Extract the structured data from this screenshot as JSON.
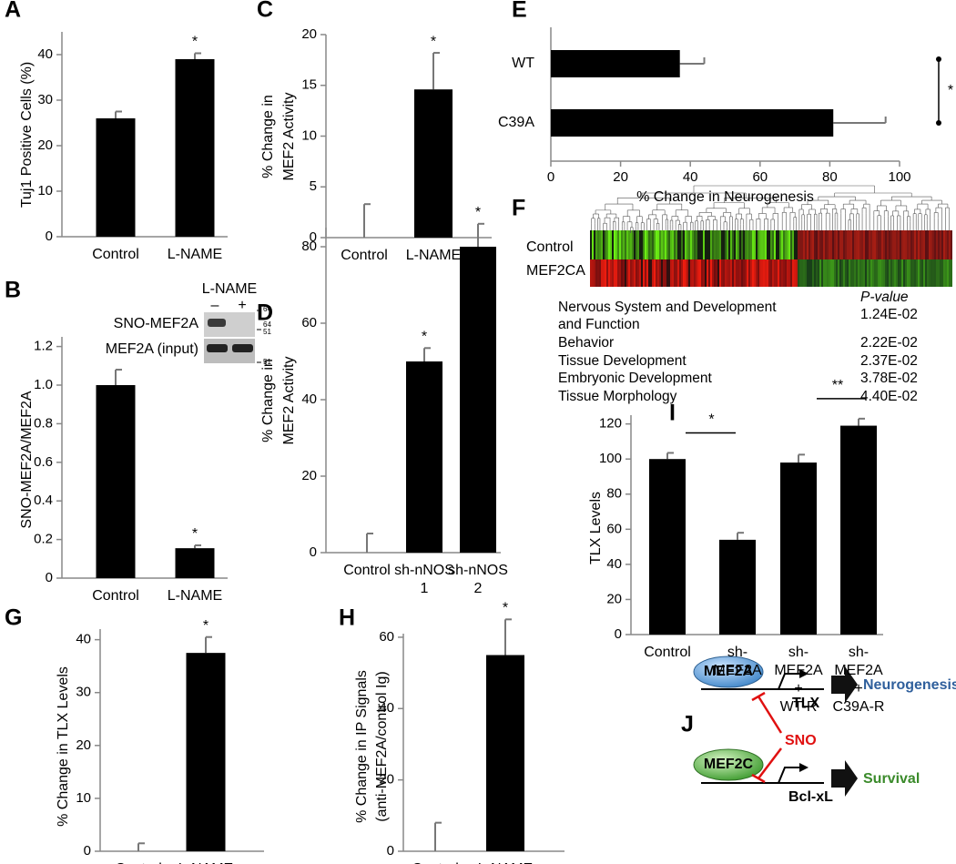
{
  "chart_data": [
    {
      "type": "bar",
      "panel": "A",
      "ylabel": [
        "Tuj1 Positive Cells (%)"
      ],
      "categories": [
        [
          "Control"
        ],
        [
          "L-NAME"
        ]
      ],
      "values": [
        26,
        39
      ],
      "errors": [
        1.5,
        1.3
      ],
      "value_annotations": [
        null,
        "*"
      ],
      "color": "#000000",
      "ylim": [
        0,
        45
      ],
      "yticks": [
        0,
        10,
        20,
        30,
        40
      ]
    },
    {
      "type": "bar",
      "panel": "B",
      "ylabel": [
        "SNO-MEF2A/MEF2A"
      ],
      "categories": [
        [
          "Control"
        ],
        [
          "L-NAME"
        ]
      ],
      "values": [
        1.0,
        0.155
      ],
      "errors": [
        0.08,
        0.015
      ],
      "value_annotations": [
        null,
        "*"
      ],
      "color": "#000000",
      "ylim": [
        0,
        1.25
      ],
      "yticks": [
        0,
        0.2,
        0.4,
        0.6,
        0.8,
        {
          "value": 1,
          "label": "1.0"
        },
        1.2
      ]
    },
    {
      "type": "bar",
      "panel": "C",
      "ylabel": [
        "% Change in",
        "MEF2 Activity"
      ],
      "categories": [
        [
          "Control"
        ],
        [
          "L-NAME"
        ]
      ],
      "values": [
        0,
        14.6
      ],
      "errors": [
        3.3,
        3.6
      ],
      "value_annotations": [
        null,
        "*"
      ],
      "color": "#000000",
      "ylim": [
        0,
        20
      ],
      "yticks": [
        0,
        5,
        10,
        15,
        20
      ]
    },
    {
      "type": "bar",
      "panel": "D",
      "ylabel": [
        "% Change in",
        "MEF2 Activity"
      ],
      "categories": [
        [
          "Control"
        ],
        [
          "sh-nNOS",
          "1"
        ],
        [
          "sh-nNOS",
          "2"
        ]
      ],
      "values": [
        0,
        50,
        80
      ],
      "errors": [
        5,
        3.5,
        6
      ],
      "value_annotations": [
        null,
        "*",
        "*"
      ],
      "color": "#000000",
      "ylim": [
        0,
        85
      ],
      "yticks": [
        0,
        20,
        40,
        60,
        80
      ]
    },
    {
      "type": "hbar",
      "panel": "E",
      "xlabel": "% Change in Neurogenesis",
      "categories": [
        "WT",
        "C39A"
      ],
      "values": [
        37,
        81
      ],
      "errors": [
        7,
        15
      ],
      "color": "#000000",
      "xlim": [
        0,
        100
      ],
      "xticks": [
        0,
        20,
        40,
        60,
        80,
        100
      ],
      "brackets": [
        {
          "from": 0,
          "to": 1,
          "label": "*"
        }
      ]
    },
    {
      "type": "bar",
      "panel": "G",
      "ylabel": [
        "% Change in TLX Levels"
      ],
      "categories": [
        [
          "Control"
        ],
        [
          "L-NAME"
        ]
      ],
      "values": [
        0,
        37.5
      ],
      "errors": [
        1.5,
        3
      ],
      "value_annotations": [
        null,
        "*"
      ],
      "color": "#000000",
      "ylim": [
        0,
        42
      ],
      "yticks": [
        0,
        10,
        20,
        30,
        40
      ]
    },
    {
      "type": "bar",
      "panel": "H",
      "ylabel": [
        "% Change in IP Signals",
        "(anti-MEF2A/control Ig)"
      ],
      "categories": [
        [
          "Control"
        ],
        [
          "L-NAME"
        ]
      ],
      "values": [
        0,
        55
      ],
      "errors": [
        8,
        10
      ],
      "value_annotations": [
        null,
        "*"
      ],
      "color": "#000000",
      "ylim": [
        0,
        61
      ],
      "yticks": [
        0,
        20,
        40,
        60
      ]
    },
    {
      "type": "bar",
      "panel": "I",
      "ylabel": [
        "TLX Levels"
      ],
      "categories": [
        [
          "Control"
        ],
        [
          "sh-",
          "MEF2A"
        ],
        [
          "sh-",
          "MEF2A",
          "+",
          "WT-R"
        ],
        [
          "sh-",
          "MEF2A",
          "+",
          "C39A-R"
        ]
      ],
      "values": [
        100,
        54,
        98,
        119
      ],
      "errors": [
        3.5,
        4,
        4.5,
        4
      ],
      "color": "#000000",
      "ylim": [
        0,
        125
      ],
      "yticks": [
        0,
        20,
        40,
        60,
        80,
        100,
        120
      ],
      "brackets": [
        {
          "from": 0,
          "to": 1,
          "label": "*"
        },
        {
          "from": 2,
          "to": 3,
          "label": "**"
        }
      ]
    }
  ],
  "blot": {
    "panel": "B",
    "treatment": "L-NAME",
    "lanes": [
      "–",
      "+"
    ],
    "rows": [
      "SNO-MEF2A",
      "MEF2A (input)"
    ],
    "markers": [
      "64",
      "64",
      "51",
      "51"
    ]
  },
  "heatmap": {
    "panel": "F",
    "rows": [
      "Control",
      "MEF2CA"
    ]
  },
  "pathways": {
    "header": "P-value",
    "rows": [
      {
        "name": [
          "Nervous System and Development",
          "and Function"
        ],
        "p": "1.24E-02"
      },
      {
        "name": [
          "Behavior"
        ],
        "p": "2.22E-02"
      },
      {
        "name": [
          "Tissue Development"
        ],
        "p": "2.37E-02"
      },
      {
        "name": [
          "Embryonic Development"
        ],
        "p": "3.78E-02"
      },
      {
        "name": [
          "Tissue Morphology"
        ],
        "p": "4.40E-02"
      }
    ]
  },
  "diagram": {
    "panel": "J",
    "proteins": [
      "MEF2A",
      "MEF2C"
    ],
    "genes": [
      "TLX",
      "Bcl-xL"
    ],
    "outcomes": [
      "Neurogenesis",
      "Survival"
    ],
    "modifier": "SNO"
  }
}
